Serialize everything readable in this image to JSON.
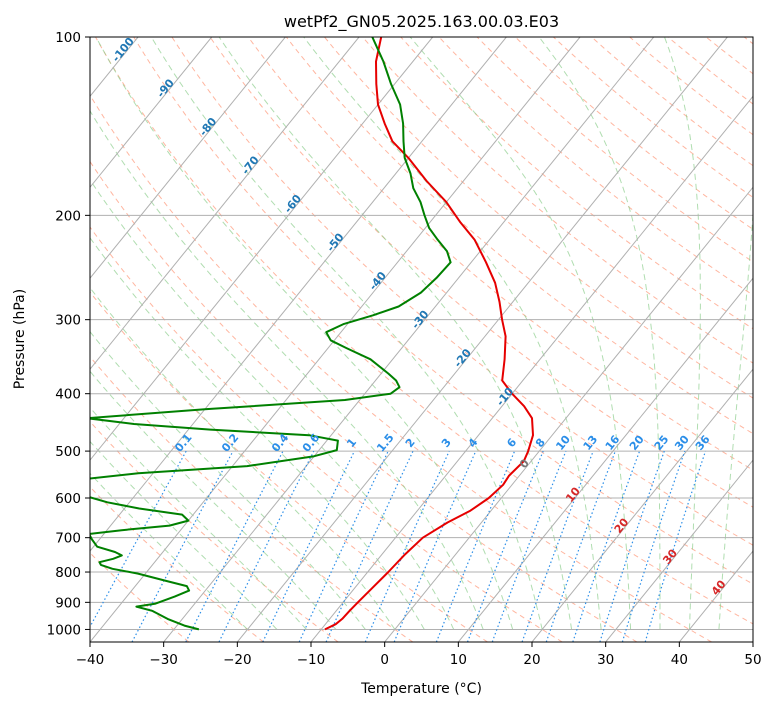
{
  "chart_data": {
    "type": "line",
    "title": "wetPf2_GN05.2025.163.00.03.E03",
    "xlabel": "Temperature (°C)",
    "ylabel": "Pressure (hPa)",
    "xlim": [
      -40,
      50
    ],
    "ylim": [
      1050,
      100
    ],
    "y_scale": "log",
    "x_ticks": [
      -40,
      -30,
      -20,
      -10,
      0,
      10,
      20,
      30,
      40,
      50
    ],
    "x_tick_labels": [
      "−40",
      "−30",
      "−20",
      "−10",
      "0",
      "10",
      "20",
      "30",
      "40",
      "50"
    ],
    "y_ticks": [
      100,
      200,
      300,
      400,
      500,
      600,
      700,
      800,
      900,
      1000
    ],
    "y_tick_labels": [
      "100",
      "200",
      "300",
      "400",
      "500",
      "600",
      "700",
      "800",
      "900",
      "1000"
    ],
    "grid": true,
    "skew": true,
    "colors": {
      "temperature": "#e60000",
      "dewpoint": "#008000",
      "isotherm": "#b0b0b0",
      "dry_adiabat": "#ff9e80",
      "moist_adiabat": "#8fce8f",
      "mixing_ratio": "#2b8ee8",
      "isotherm_label": "#1f77b4",
      "mixing_label": "#2b8ee8",
      "warm_label": "#d62728",
      "zero_label": "#777777"
    },
    "series": [
      {
        "key": "temperature",
        "points": [
          [
            1000,
            -9.5
          ],
          [
            980,
            -8.6
          ],
          [
            960,
            -8.3
          ],
          [
            930,
            -8.2
          ],
          [
            900,
            -8.0
          ],
          [
            850,
            -7.6
          ],
          [
            800,
            -7.2
          ],
          [
            750,
            -6.9
          ],
          [
            700,
            -6.3
          ],
          [
            660,
            -4.6
          ],
          [
            630,
            -2.8
          ],
          [
            600,
            -1.7
          ],
          [
            570,
            -1.2
          ],
          [
            550,
            -1.4
          ],
          [
            520,
            -1.0
          ],
          [
            500,
            -1.5
          ],
          [
            470,
            -2.6
          ],
          [
            440,
            -4.6
          ],
          [
            420,
            -7.0
          ],
          [
            400,
            -10.0
          ],
          [
            380,
            -12.8
          ],
          [
            350,
            -14.8
          ],
          [
            320,
            -17.2
          ],
          [
            300,
            -19.5
          ],
          [
            280,
            -21.8
          ],
          [
            260,
            -24.5
          ],
          [
            240,
            -28.0
          ],
          [
            220,
            -32.0
          ],
          [
            205,
            -36.0
          ],
          [
            190,
            -40.0
          ],
          [
            175,
            -45.0
          ],
          [
            160,
            -50.0
          ],
          [
            150,
            -54.0
          ],
          [
            140,
            -57.0
          ],
          [
            130,
            -60.0
          ],
          [
            120,
            -62.5
          ],
          [
            110,
            -65.0
          ],
          [
            100,
            -67.0
          ]
        ]
      },
      {
        "key": "dewpoint",
        "points": [
          [
            1000,
            -26.6
          ],
          [
            985,
            -29.0
          ],
          [
            960,
            -32.0
          ],
          [
            930,
            -35.0
          ],
          [
            915,
            -37.6
          ],
          [
            905,
            -35.4
          ],
          [
            880,
            -33.5
          ],
          [
            860,
            -32.2
          ],
          [
            845,
            -33.0
          ],
          [
            830,
            -36.0
          ],
          [
            805,
            -41.0
          ],
          [
            790,
            -45.0
          ],
          [
            778,
            -47.0
          ],
          [
            770,
            -47.5
          ],
          [
            760,
            -46.0
          ],
          [
            750,
            -45.2
          ],
          [
            740,
            -46.5
          ],
          [
            725,
            -49.5
          ],
          [
            705,
            -51.0
          ],
          [
            690,
            -52.0
          ],
          [
            680,
            -48.0
          ],
          [
            668,
            -42.0
          ],
          [
            655,
            -40.0
          ],
          [
            640,
            -41.5
          ],
          [
            625,
            -48.0
          ],
          [
            610,
            -53.0
          ],
          [
            590,
            -58.0
          ],
          [
            560,
            -60.0
          ],
          [
            545,
            -52.0
          ],
          [
            530,
            -38.0
          ],
          [
            510,
            -30.0
          ],
          [
            498,
            -27.6
          ],
          [
            480,
            -28.5
          ],
          [
            470,
            -33.0
          ],
          [
            460,
            -47.0
          ],
          [
            450,
            -58.0
          ],
          [
            440,
            -65.0
          ],
          [
            425,
            -50.0
          ],
          [
            410,
            -32.0
          ],
          [
            400,
            -26.5
          ],
          [
            390,
            -26.0
          ],
          [
            380,
            -27.2
          ],
          [
            370,
            -29.0
          ],
          [
            350,
            -33.0
          ],
          [
            335,
            -37.5
          ],
          [
            325,
            -40.5
          ],
          [
            315,
            -42.0
          ],
          [
            305,
            -40.5
          ],
          [
            295,
            -37.5
          ],
          [
            285,
            -35.0
          ],
          [
            270,
            -33.5
          ],
          [
            255,
            -33.0
          ],
          [
            240,
            -32.8
          ],
          [
            230,
            -34.5
          ],
          [
            220,
            -37.0
          ],
          [
            210,
            -39.5
          ],
          [
            200,
            -41.5
          ],
          [
            190,
            -43.5
          ],
          [
            180,
            -46.0
          ],
          [
            170,
            -48.0
          ],
          [
            160,
            -50.5
          ],
          [
            150,
            -52.5
          ],
          [
            140,
            -54.5
          ],
          [
            130,
            -57.0
          ],
          [
            120,
            -60.5
          ],
          [
            110,
            -64.0
          ],
          [
            100,
            -68.2
          ]
        ]
      }
    ],
    "isotherm_labels": [
      {
        "text": "-100",
        "value": -100
      },
      {
        "text": "-90",
        "value": -90
      },
      {
        "text": "-80",
        "value": -80
      },
      {
        "text": "-70",
        "value": -70
      },
      {
        "text": "-60",
        "value": -60
      },
      {
        "text": "-50",
        "value": -50
      },
      {
        "text": "-40",
        "value": -40
      },
      {
        "text": "-30",
        "value": -30
      },
      {
        "text": "-20",
        "value": -20
      },
      {
        "text": "-10",
        "value": -10
      }
    ],
    "mixing_ratio_labels": [
      "0.1",
      "0.2",
      "0.4",
      "0.6",
      "1",
      "1.5",
      "2",
      "3",
      "4",
      "6",
      "8",
      "10",
      "13",
      "16",
      "20",
      "25",
      "30",
      "36"
    ],
    "warm_isotherm_labels": [
      {
        "text": "0",
        "value": 0
      },
      {
        "text": "10",
        "value": 10
      },
      {
        "text": "20",
        "value": 20
      },
      {
        "text": "30",
        "value": 30
      },
      {
        "text": "40",
        "value": 40
      }
    ]
  }
}
